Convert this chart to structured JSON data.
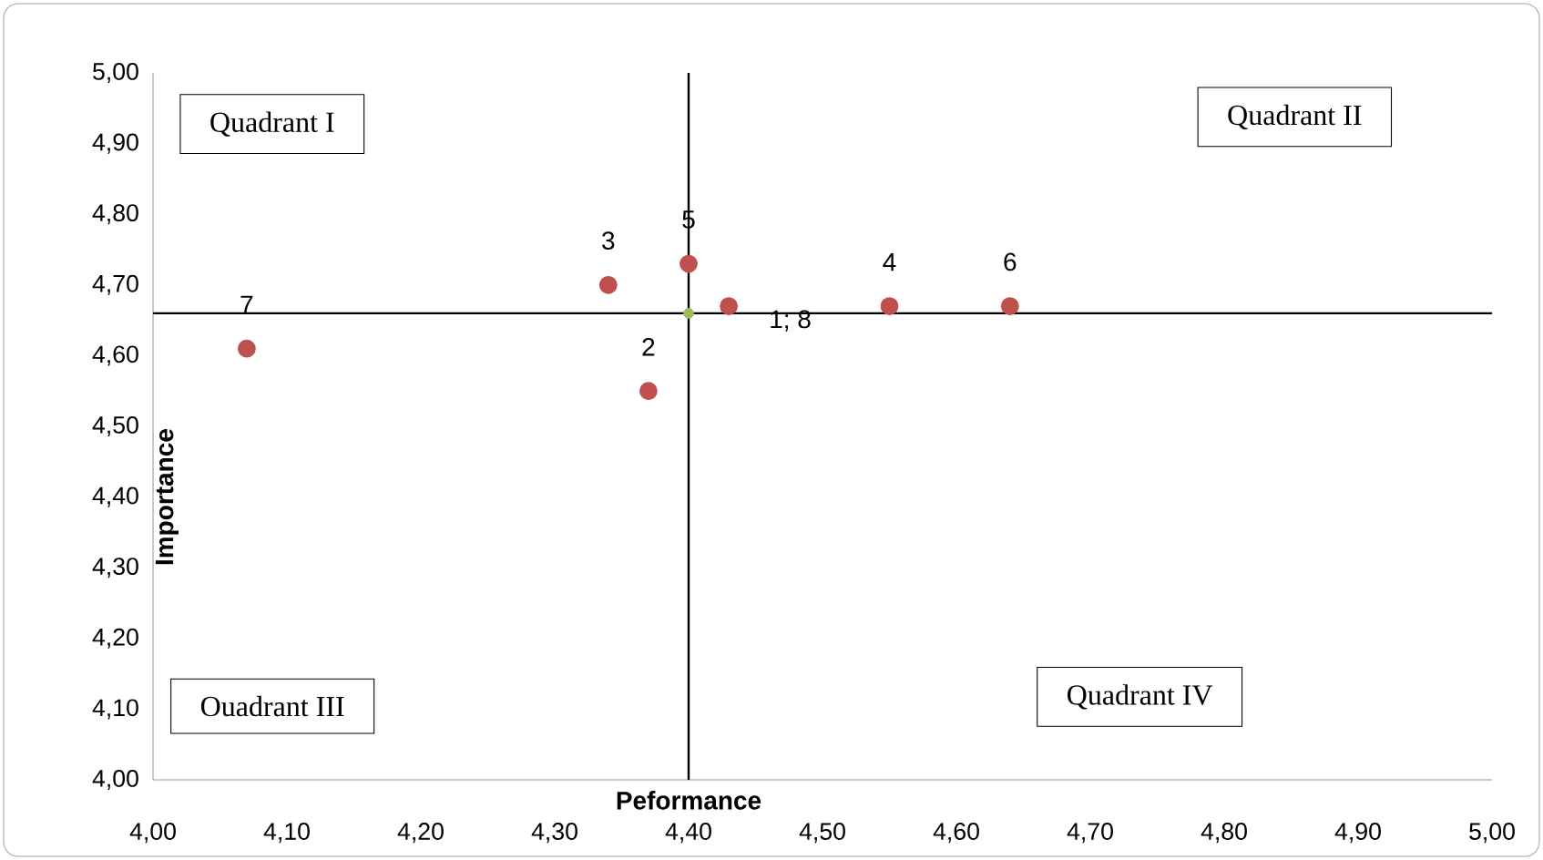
{
  "chart_data": {
    "type": "scatter",
    "xlabel": "Peformance",
    "ylabel": "Importance",
    "series": [
      {
        "color": "#c0504d",
        "x": [
          4.07,
          4.37,
          4.34,
          4.55,
          4.4,
          4.64,
          4.43
        ],
        "values": [
          4.61,
          4.55,
          4.7,
          4.67,
          4.73,
          4.67,
          4.67
        ]
      },
      {
        "color": "#9bbb59",
        "x": [
          4.4
        ],
        "values": [
          4.66
        ]
      }
    ],
    "xlim": [
      4.0,
      5.0
    ],
    "ylim": [
      4.0,
      5.0
    ],
    "xticks": [
      {
        "value": 4.0,
        "label": "4,00"
      },
      {
        "value": 4.1,
        "label": "4,10"
      },
      {
        "value": 4.2,
        "label": "4,20"
      },
      {
        "value": 4.3,
        "label": "4,30"
      },
      {
        "value": 4.4,
        "label": "4,40"
      },
      {
        "value": 4.5,
        "label": "4,50"
      },
      {
        "value": 4.6,
        "label": "4,60"
      },
      {
        "value": 4.7,
        "label": "4,70"
      },
      {
        "value": 4.8,
        "label": "4,80"
      },
      {
        "value": 4.9,
        "label": "4,90"
      },
      {
        "value": 5.0,
        "label": "5,00"
      }
    ],
    "yticks": [
      {
        "value": 4.0,
        "label": "4,00"
      },
      {
        "value": 4.1,
        "label": "4,10"
      },
      {
        "value": 4.2,
        "label": "4,20"
      },
      {
        "value": 4.3,
        "label": "4,30"
      },
      {
        "value": 4.4,
        "label": "4,40"
      },
      {
        "value": 4.5,
        "label": "4,50"
      },
      {
        "value": 4.6,
        "label": "4,60"
      },
      {
        "value": 4.7,
        "label": "4,70"
      },
      {
        "value": 4.8,
        "label": "4,80"
      },
      {
        "value": 4.9,
        "label": "4,90"
      },
      {
        "value": 5.0,
        "label": "5,00"
      }
    ],
    "ref_lines": [
      {
        "axis": "y",
        "value": 4.66,
        "color": "#000000"
      },
      {
        "axis": "x",
        "value": 4.4,
        "color": "#000000"
      }
    ],
    "marker": "circle",
    "annotations": [
      "Quadrant I",
      "Quadrant  II",
      "Ouadrant III",
      "Quadrant IV",
      {
        "text": "7",
        "x": 4.07,
        "y": 4.61
      },
      {
        "text": "2",
        "x": 4.37,
        "y": 4.55
      },
      {
        "text": "3",
        "x": 4.34,
        "y": 4.7
      },
      {
        "text": "5",
        "x": 4.4,
        "y": 4.73
      },
      {
        "text": "1; 8",
        "x": 4.43,
        "y": 4.67
      },
      {
        "text": "4",
        "x": 4.55,
        "y": 4.67
      },
      {
        "text": "6",
        "x": 4.64,
        "y": 4.67
      }
    ]
  }
}
